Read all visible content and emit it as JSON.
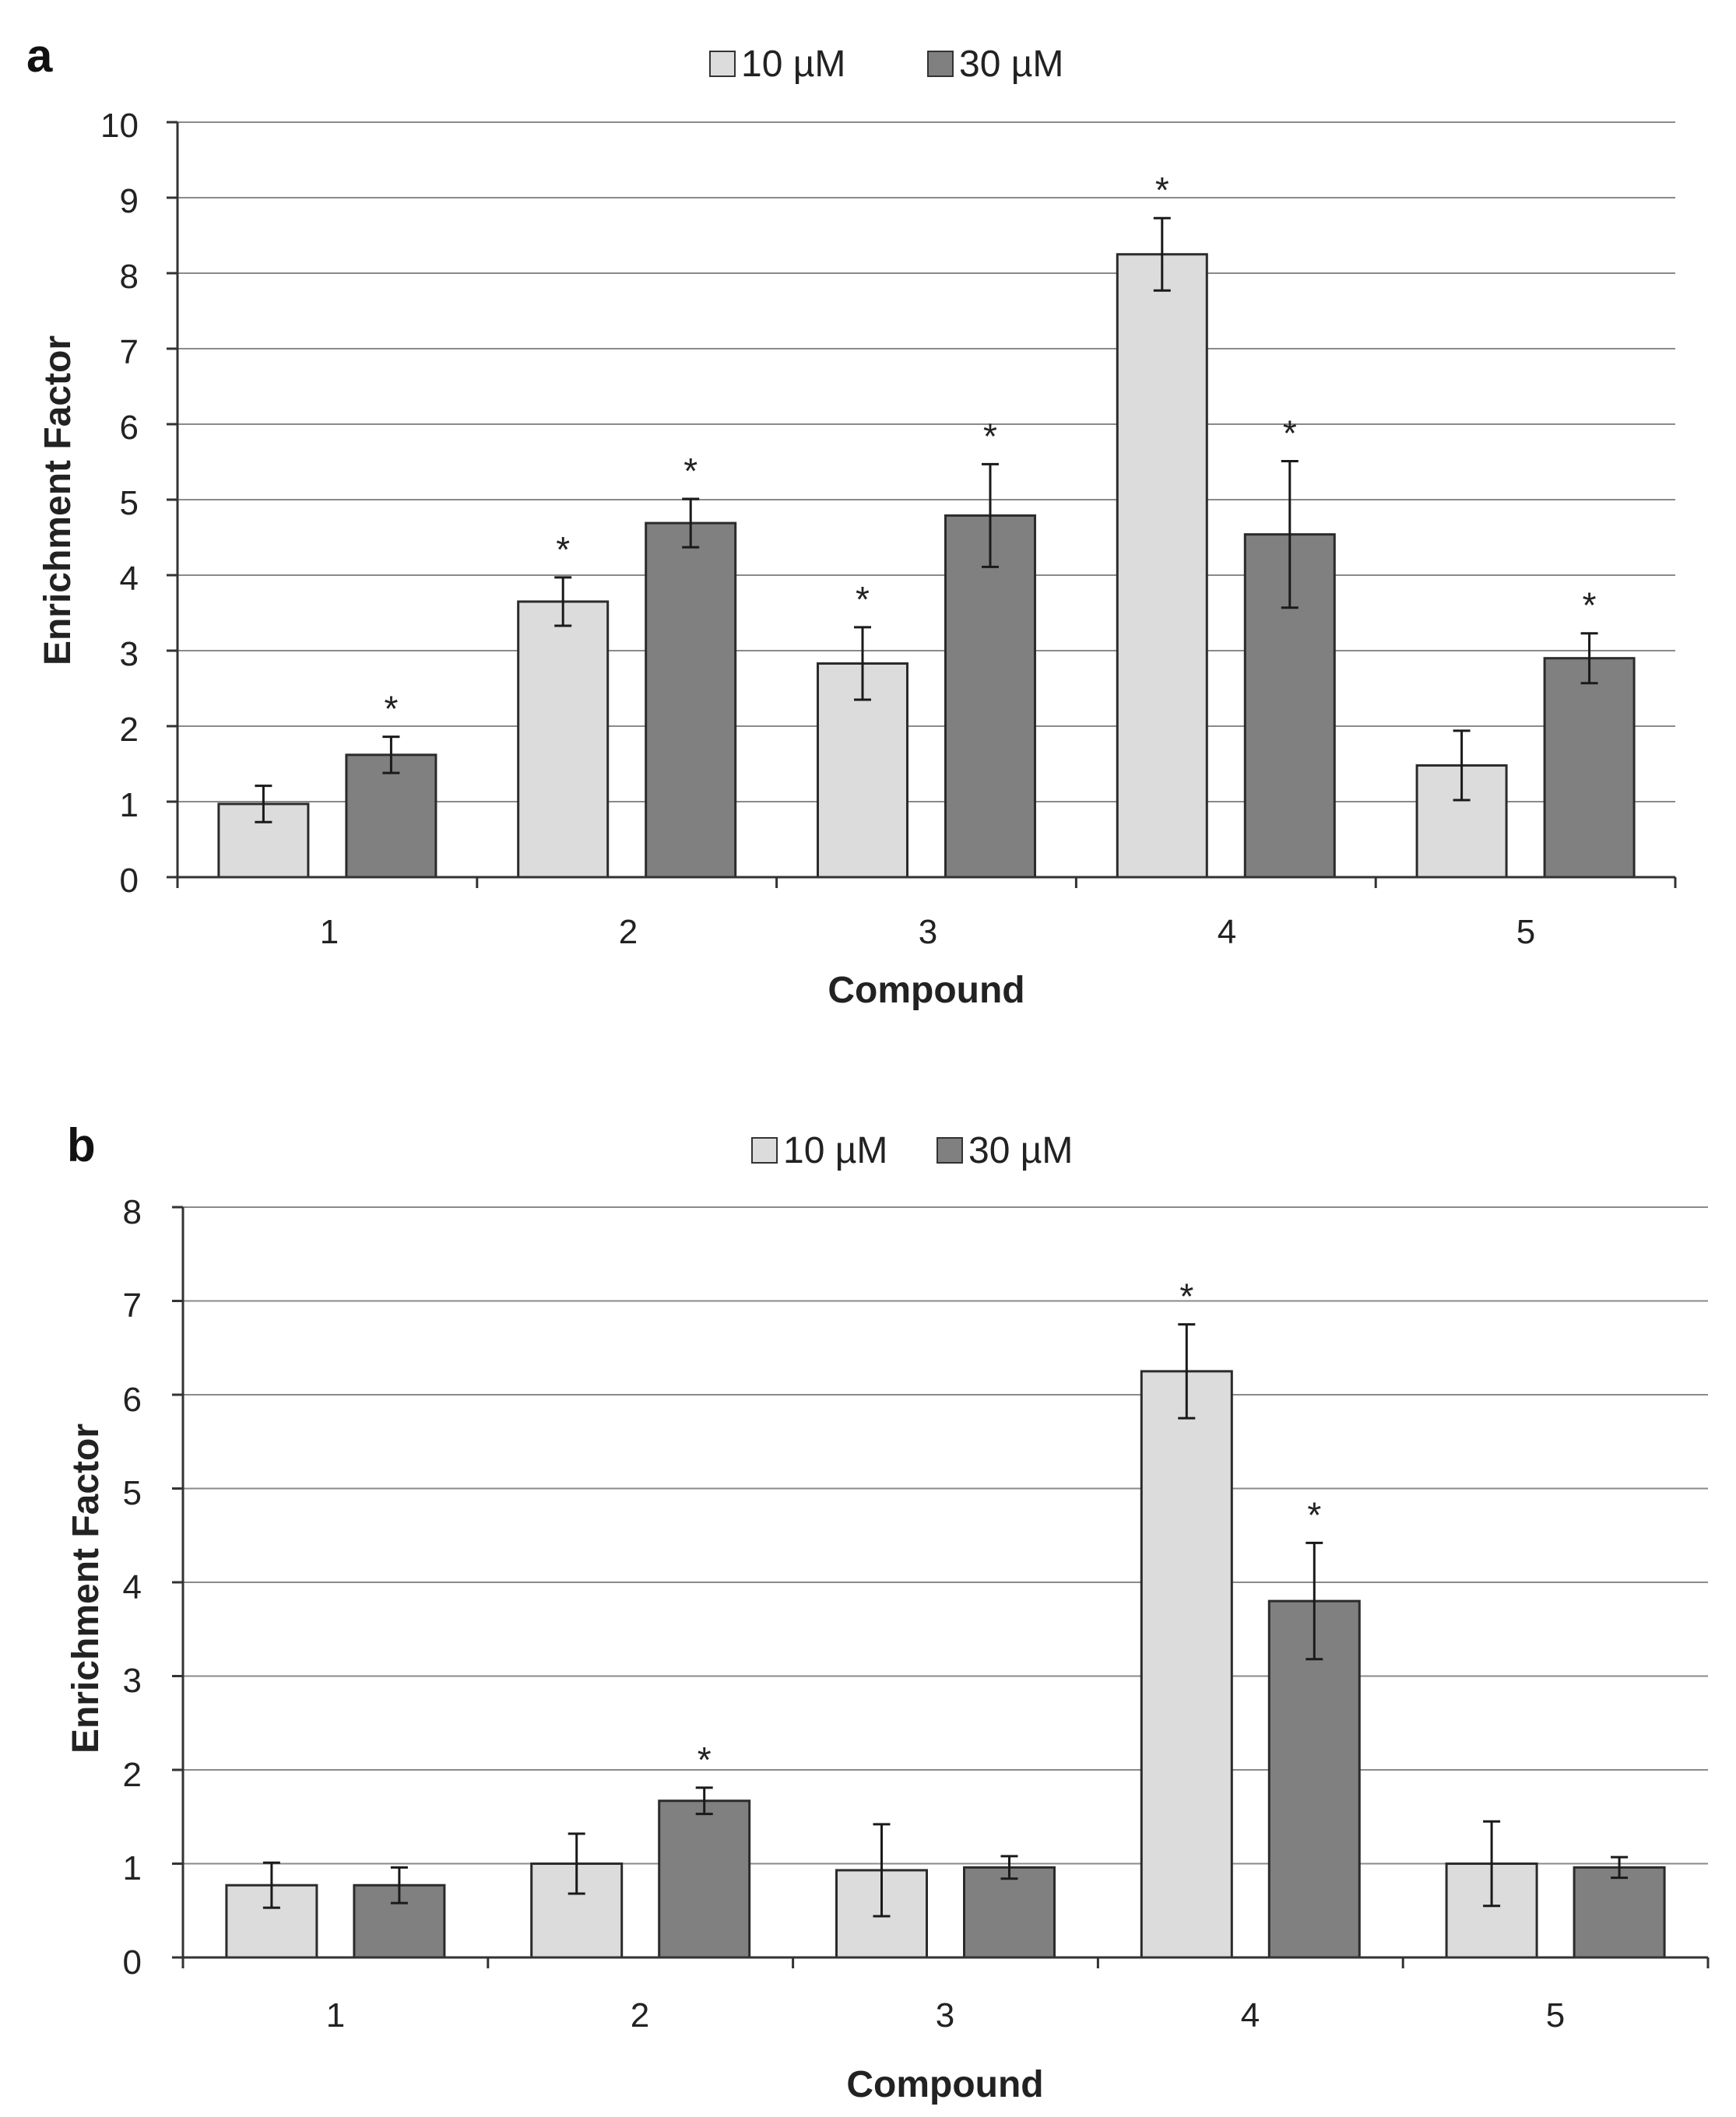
{
  "chart_data": [
    {
      "panel_label": "a",
      "type": "bar",
      "categories": [
        "1",
        "2",
        "3",
        "4",
        "5"
      ],
      "series": [
        {
          "name": "10 µM",
          "color": "#dcdcdc",
          "values": [
            0.97,
            3.65,
            2.83,
            8.25,
            1.48
          ],
          "errors": [
            0.24,
            0.32,
            0.48,
            0.48,
            0.46
          ],
          "significance": [
            "",
            "*",
            "*",
            "*",
            ""
          ]
        },
        {
          "name": "30 µM",
          "color": "#808080",
          "values": [
            1.62,
            4.69,
            4.79,
            4.54,
            2.9
          ],
          "errors": [
            0.24,
            0.32,
            0.68,
            0.97,
            0.33
          ],
          "significance": [
            "*",
            "*",
            "*",
            "*",
            "*"
          ]
        }
      ],
      "xlabel": "Compound",
      "ylabel": "Enrichment Factor",
      "ylim": [
        0,
        10
      ],
      "yticks": [
        "0",
        "1",
        "2",
        "3",
        "4",
        "5",
        "6",
        "7",
        "8",
        "9",
        "10"
      ],
      "grid": "horizontal",
      "legend": "top-center"
    },
    {
      "panel_label": "b",
      "type": "bar",
      "categories": [
        "1",
        "2",
        "3",
        "4",
        "5"
      ],
      "series": [
        {
          "name": "10 µM",
          "color": "#dcdcdc",
          "values": [
            0.77,
            1.0,
            0.93,
            6.25,
            1.0
          ],
          "errors": [
            0.24,
            0.32,
            0.49,
            0.5,
            0.45
          ],
          "significance": [
            "",
            "",
            "",
            "*",
            ""
          ]
        },
        {
          "name": "30 µM",
          "color": "#808080",
          "values": [
            0.77,
            1.67,
            0.96,
            3.8,
            0.96
          ],
          "errors": [
            0.19,
            0.14,
            0.12,
            0.62,
            0.11
          ],
          "significance": [
            "",
            "*",
            "",
            "*",
            ""
          ]
        }
      ],
      "xlabel": "Compound",
      "ylabel": "Enrichment Factor",
      "ylim": [
        0,
        8
      ],
      "yticks": [
        "0",
        "1",
        "2",
        "3",
        "4",
        "5",
        "6",
        "7",
        "8"
      ],
      "grid": "horizontal",
      "legend": "top-center"
    }
  ]
}
